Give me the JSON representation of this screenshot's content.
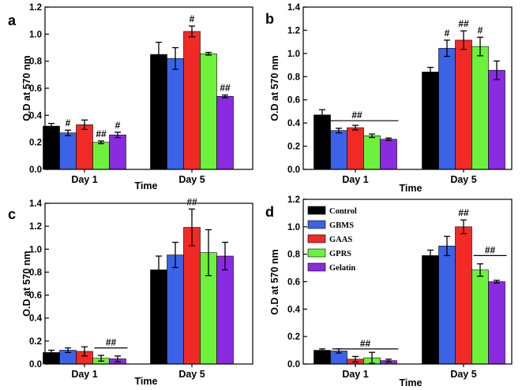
{
  "colors": {
    "Control": "#000000",
    "GBMS": "#3a63e8",
    "GAAS": "#f22a26",
    "GPRS": "#6cf23a",
    "Gelatin": "#8a2be2"
  },
  "chart_data": [
    {
      "panel": "a",
      "type": "bar",
      "categories": [
        "Day 1",
        "Day 5"
      ],
      "xlabel": "Time",
      "ylabel": "O.D at 570 nm",
      "ylim": [
        0.0,
        1.2
      ],
      "yticks": [
        "0.0",
        "0.2",
        "0.4",
        "0.6",
        "0.8",
        "1.0",
        "1.2"
      ],
      "series": [
        {
          "name": "Control",
          "values": [
            0.32,
            0.85
          ],
          "errors": [
            0.02,
            0.09
          ]
        },
        {
          "name": "GBMS",
          "values": [
            0.27,
            0.82
          ],
          "errors": [
            0.02,
            0.08
          ]
        },
        {
          "name": "GAAS",
          "values": [
            0.33,
            1.02
          ],
          "errors": [
            0.035,
            0.04
          ]
        },
        {
          "name": "GPRS",
          "values": [
            0.2,
            0.855
          ],
          "errors": [
            0.01,
            0.01
          ]
        },
        {
          "name": "Gelatin",
          "values": [
            0.255,
            0.54
          ],
          "errors": [
            0.02,
            0.01
          ]
        }
      ],
      "annotations": [
        {
          "text": "#",
          "category": 0,
          "series": 1
        },
        {
          "text": "##",
          "category": 0,
          "series": 3
        },
        {
          "text": "#",
          "category": 0,
          "series": 4
        },
        {
          "text": "#",
          "category": 1,
          "series": 2
        },
        {
          "text": "##",
          "category": 1,
          "series": 4
        }
      ],
      "brackets": []
    },
    {
      "panel": "b",
      "type": "bar",
      "categories": [
        "Day 1",
        "Day 5"
      ],
      "xlabel": "Time",
      "ylabel": "O.D at 570 nm",
      "ylim": [
        0.0,
        1.4
      ],
      "yticks": [
        "0.0",
        "0.2",
        "0.4",
        "0.6",
        "0.8",
        "1.0",
        "1.2",
        "1.4"
      ],
      "series": [
        {
          "name": "Control",
          "values": [
            0.47,
            0.84
          ],
          "errors": [
            0.045,
            0.04
          ]
        },
        {
          "name": "GBMS",
          "values": [
            0.335,
            1.045
          ],
          "errors": [
            0.02,
            0.07
          ]
        },
        {
          "name": "GAAS",
          "values": [
            0.36,
            1.115
          ],
          "errors": [
            0.02,
            0.08
          ]
        },
        {
          "name": "GPRS",
          "values": [
            0.29,
            1.06
          ],
          "errors": [
            0.015,
            0.08
          ]
        },
        {
          "name": "Gelatin",
          "values": [
            0.26,
            0.855
          ],
          "errors": [
            0.01,
            0.08
          ]
        }
      ],
      "annotations": [
        {
          "text": "#",
          "category": 1,
          "series": 1
        },
        {
          "text": "##",
          "category": 1,
          "series": 2
        },
        {
          "text": "#",
          "category": 1,
          "series": 3
        }
      ],
      "brackets": [
        {
          "text": "##",
          "category": 0,
          "y": 0.42
        }
      ]
    },
    {
      "panel": "c",
      "type": "bar",
      "categories": [
        "Day 1",
        "Day 5"
      ],
      "xlabel": "Time",
      "ylabel": "O.D at 570 nm",
      "ylim": [
        0.0,
        1.4
      ],
      "yticks": [
        "0.0",
        "0.2",
        "0.4",
        "0.6",
        "0.8",
        "1.0",
        "1.2",
        "1.4"
      ],
      "series": [
        {
          "name": "Control",
          "values": [
            0.1,
            0.82
          ],
          "errors": [
            0.02,
            0.12
          ]
        },
        {
          "name": "GBMS",
          "values": [
            0.12,
            0.95
          ],
          "errors": [
            0.02,
            0.11
          ]
        },
        {
          "name": "GAAS",
          "values": [
            0.11,
            1.19
          ],
          "errors": [
            0.04,
            0.16
          ]
        },
        {
          "name": "GPRS",
          "values": [
            0.05,
            0.97
          ],
          "errors": [
            0.025,
            0.2
          ]
        },
        {
          "name": "Gelatin",
          "values": [
            0.045,
            0.94
          ],
          "errors": [
            0.025,
            0.12
          ]
        }
      ],
      "annotations": [
        {
          "text": "##",
          "category": 1,
          "series": 2
        }
      ],
      "brackets": [
        {
          "text": "##",
          "category": 0,
          "y": 0.14,
          "from": 3
        }
      ]
    },
    {
      "panel": "d",
      "type": "bar",
      "categories": [
        "Day 1",
        "Day 5"
      ],
      "xlabel": "Time",
      "ylabel": "O.D at 570 nm",
      "ylim": [
        0.0,
        1.2
      ],
      "yticks": [
        "0.0",
        "0.2",
        "0.4",
        "0.6",
        "0.8",
        "1.0",
        "1.2"
      ],
      "series": [
        {
          "name": "Control",
          "values": [
            0.1,
            0.79
          ],
          "errors": [
            0.01,
            0.04
          ]
        },
        {
          "name": "GBMS",
          "values": [
            0.095,
            0.86
          ],
          "errors": [
            0.015,
            0.07
          ]
        },
        {
          "name": "GAAS",
          "values": [
            0.035,
            1.0
          ],
          "errors": [
            0.02,
            0.05
          ]
        },
        {
          "name": "GPRS",
          "values": [
            0.045,
            0.685
          ],
          "errors": [
            0.04,
            0.045
          ]
        },
        {
          "name": "Gelatin",
          "values": [
            0.025,
            0.6
          ],
          "errors": [
            0.01,
            0.01
          ]
        }
      ],
      "annotations": [
        {
          "text": "##",
          "category": 1,
          "series": 2
        }
      ],
      "brackets": [
        {
          "text": "##",
          "category": 0,
          "y": 0.11,
          "from": 1
        },
        {
          "text": "##",
          "category": 1,
          "y": 0.79,
          "from": 3
        }
      ],
      "legend": {
        "position": "top-left",
        "items": [
          "Control",
          "GBMS",
          "GAAS",
          "GPRS",
          "Gelatin"
        ]
      }
    }
  ]
}
